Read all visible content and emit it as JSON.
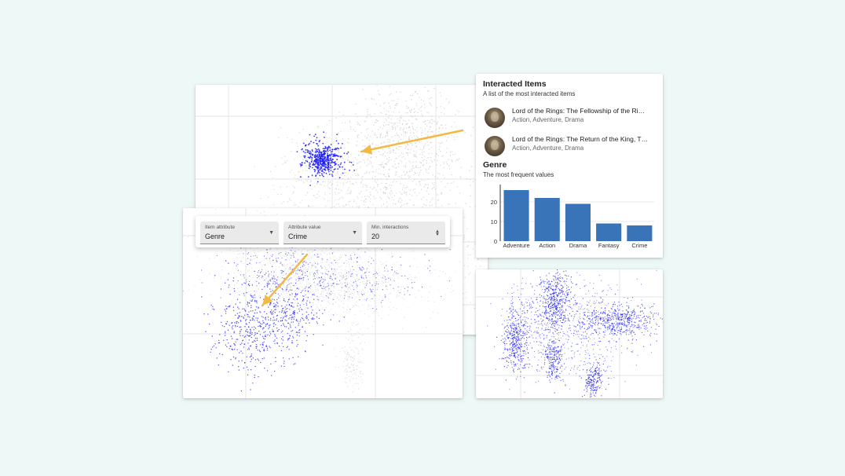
{
  "controls": {
    "item_attribute": {
      "label": "Item attribute",
      "value": "Genre"
    },
    "attribute_value": {
      "label": "Attribute value",
      "value": "Crime"
    },
    "min_interactions": {
      "label": "Min. interactions",
      "value": "20"
    }
  },
  "panel": {
    "interacted": {
      "title": "Interacted Items",
      "subtitle": "A list of the most interacted items",
      "items": [
        {
          "name": "Lord of the Rings: The Fellowship of the Ri…",
          "genres": "Action, Adventure, Drama"
        },
        {
          "name": "Lord of the Rings: The Return of the King, T…",
          "genres": "Action, Adventure, Drama"
        }
      ]
    },
    "genre": {
      "title": "Genre",
      "subtitle": "The most frequent values"
    }
  },
  "colors": {
    "highlight_points": "#1a1aff",
    "background_points": "#c8c8c8",
    "arrow": "#f4b942",
    "bar": "#3a74b8"
  },
  "chart_data": {
    "type": "bar",
    "categories": [
      "Adventure",
      "Action",
      "Drama",
      "Fantasy",
      "Crime"
    ],
    "values": [
      26,
      22,
      19,
      9,
      8
    ],
    "title": "",
    "xlabel": "",
    "ylabel": "",
    "ylim": [
      0,
      28
    ],
    "yticks": [
      0,
      10,
      20
    ],
    "grid": true
  }
}
